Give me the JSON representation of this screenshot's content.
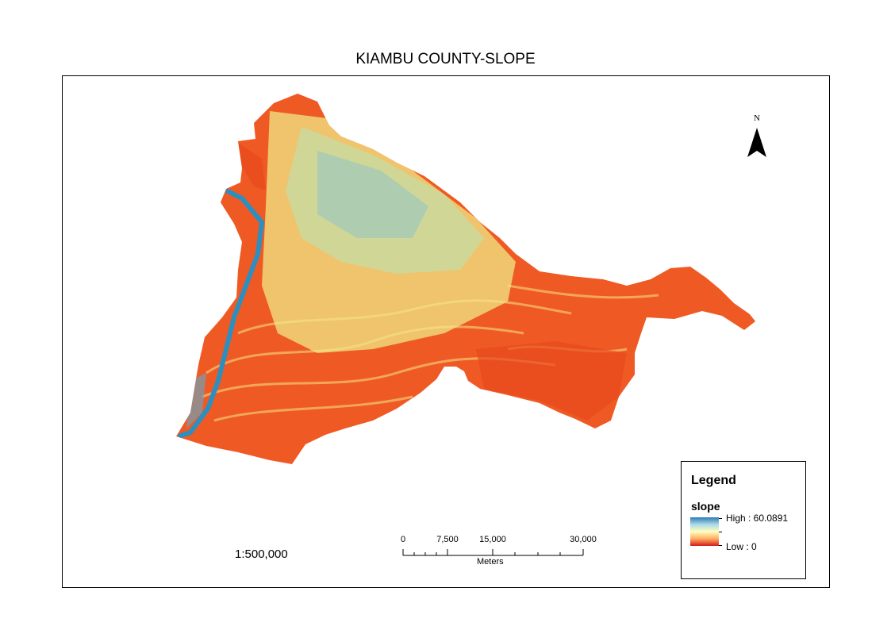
{
  "map": {
    "title": "KIAMBU COUNTY-SLOPE",
    "north_label": "N",
    "scale_text": "1:500,000",
    "scalebar": {
      "labels": [
        "0",
        "7,500",
        "15,000",
        "30,000"
      ],
      "unit": "Meters"
    },
    "legend": {
      "title": "Legend",
      "layer": "slope",
      "high": "High : 60.0891",
      "low": "Low : 0"
    },
    "colors": {
      "high": "#2c7bb6",
      "mid": "#ffffbf",
      "low": "#d7191c",
      "base": "#f26b2a"
    }
  }
}
